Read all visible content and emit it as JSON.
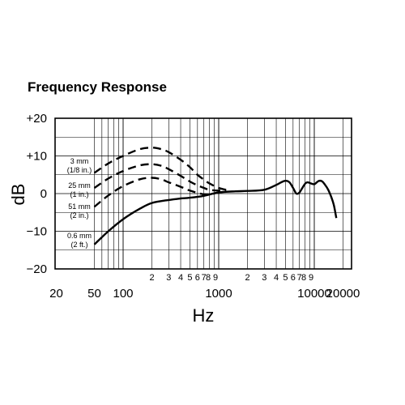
{
  "chart_data": {
    "type": "line",
    "title": "Frequency Response",
    "xlabel": "Hz",
    "ylabel": "dB",
    "x_scale": "log",
    "xlim": [
      50,
      20000
    ],
    "ylim": [
      -20,
      20
    ],
    "grid": true,
    "y_ticks": [
      "+20",
      "+10",
      "0",
      "−10",
      "−20"
    ],
    "y_tick_values": [
      20,
      10,
      0,
      -10,
      -20
    ],
    "x_major_ticks": [
      {
        "label": "20",
        "value": 20
      },
      {
        "label": "50",
        "value": 50
      },
      {
        "label": "100",
        "value": 100
      },
      {
        "label": "1000",
        "value": 1000
      },
      {
        "label": "10000",
        "value": 10000
      },
      {
        "label": "20000",
        "value": 20000
      }
    ],
    "x_minor_ticks": [
      {
        "label": "2",
        "value": 200
      },
      {
        "label": "3",
        "value": 300
      },
      {
        "label": "4",
        "value": 400
      },
      {
        "label": "5",
        "value": 500
      },
      {
        "label": "6",
        "value": 600
      },
      {
        "label": "7",
        "value": 700
      },
      {
        "label": "8",
        "value": 800
      },
      {
        "label": "9",
        "value": 900
      },
      {
        "label": "2",
        "value": 2000
      },
      {
        "label": "3",
        "value": 3000
      },
      {
        "label": "4",
        "value": 4000
      },
      {
        "label": "5",
        "value": 5000
      },
      {
        "label": "6",
        "value": 6000
      },
      {
        "label": "7",
        "value": 7000
      },
      {
        "label": "8",
        "value": 8000
      },
      {
        "label": "9",
        "value": 9000
      }
    ],
    "series": [
      {
        "labels": [
          "3 mm",
          "(1/8 in.)"
        ],
        "style": "dashed",
        "x": [
          50,
          70,
          100,
          150,
          200,
          250,
          300,
          400,
          500,
          600,
          700,
          800,
          1000,
          1200
        ],
        "y": [
          5.5,
          8,
          10,
          11.8,
          12.2,
          11.8,
          11,
          9,
          7,
          5,
          3.7,
          2.7,
          1.5,
          1
        ]
      },
      {
        "labels": [
          "25 mm",
          "(1 in.)"
        ],
        "style": "dashed",
        "x": [
          50,
          70,
          100,
          150,
          200,
          250,
          300,
          400,
          500,
          600,
          700,
          800,
          1000,
          1200
        ],
        "y": [
          1.5,
          4,
          6,
          7.5,
          7.8,
          7.4,
          6.5,
          4.7,
          3.2,
          2.2,
          1.5,
          1,
          0.8,
          0.8
        ]
      },
      {
        "labels": [
          "51 mm",
          "(2 in.)"
        ],
        "style": "dashed",
        "x": [
          50,
          70,
          100,
          150,
          200,
          250,
          300,
          400,
          500,
          600,
          700,
          800,
          1000
        ],
        "y": [
          -3.5,
          -0.5,
          2,
          3.8,
          4.2,
          3.8,
          3,
          1.8,
          0.8,
          0.2,
          -0.2,
          -0.2,
          0.3
        ]
      },
      {
        "labels": [
          "0.6 mm",
          "(2 ft.)"
        ],
        "style": "solid",
        "x": [
          50,
          70,
          100,
          150,
          200,
          300,
          400,
          500,
          700,
          1000,
          1500,
          2000,
          3000,
          4000,
          4500,
          5000,
          5500,
          6000,
          6500,
          7000,
          7500,
          8000,
          8500,
          9000,
          10000,
          11000,
          12000,
          13000,
          14000,
          15000,
          16000,
          17000
        ],
        "y": [
          -13.5,
          -10,
          -6.8,
          -4,
          -2.5,
          -1.7,
          -1.3,
          -1.1,
          -0.6,
          0.3,
          0.6,
          0.7,
          1,
          2.3,
          3,
          3.4,
          3,
          1.5,
          0,
          0.3,
          1.5,
          2.6,
          3,
          2.8,
          2.5,
          3.3,
          3.3,
          2.3,
          1,
          -0.8,
          -3,
          -6.5
        ]
      }
    ]
  }
}
